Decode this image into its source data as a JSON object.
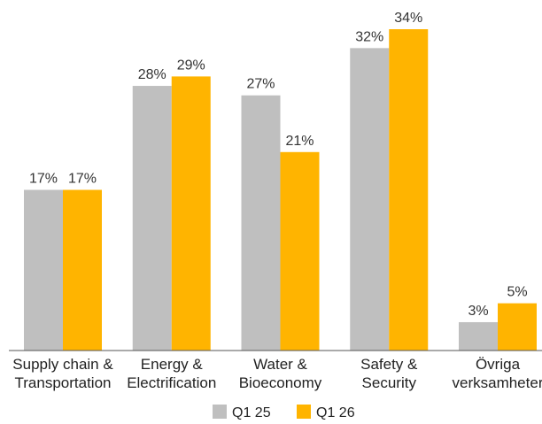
{
  "chart_data": {
    "type": "bar",
    "categories": [
      [
        "Supply chain &",
        "Transportation"
      ],
      [
        "Energy &",
        "Electrification"
      ],
      [
        "Water &",
        "Bioeconomy"
      ],
      [
        "Safety &",
        "Security"
      ],
      [
        "Övriga",
        "verksamheter"
      ]
    ],
    "series": [
      {
        "name": "Q1 25",
        "values": [
          17,
          28,
          27,
          32,
          3
        ],
        "labels": [
          "17%",
          "28%",
          "27%",
          "32%",
          "3%"
        ],
        "color": "#bfbfbf"
      },
      {
        "name": "Q1 26",
        "values": [
          17,
          29,
          21,
          34,
          5
        ],
        "labels": [
          "17%",
          "29%",
          "21%",
          "34%",
          "5%"
        ],
        "color": "#ffb400"
      }
    ],
    "ylim": [
      0,
      34
    ],
    "legend_position": "bottom",
    "grid": false
  }
}
